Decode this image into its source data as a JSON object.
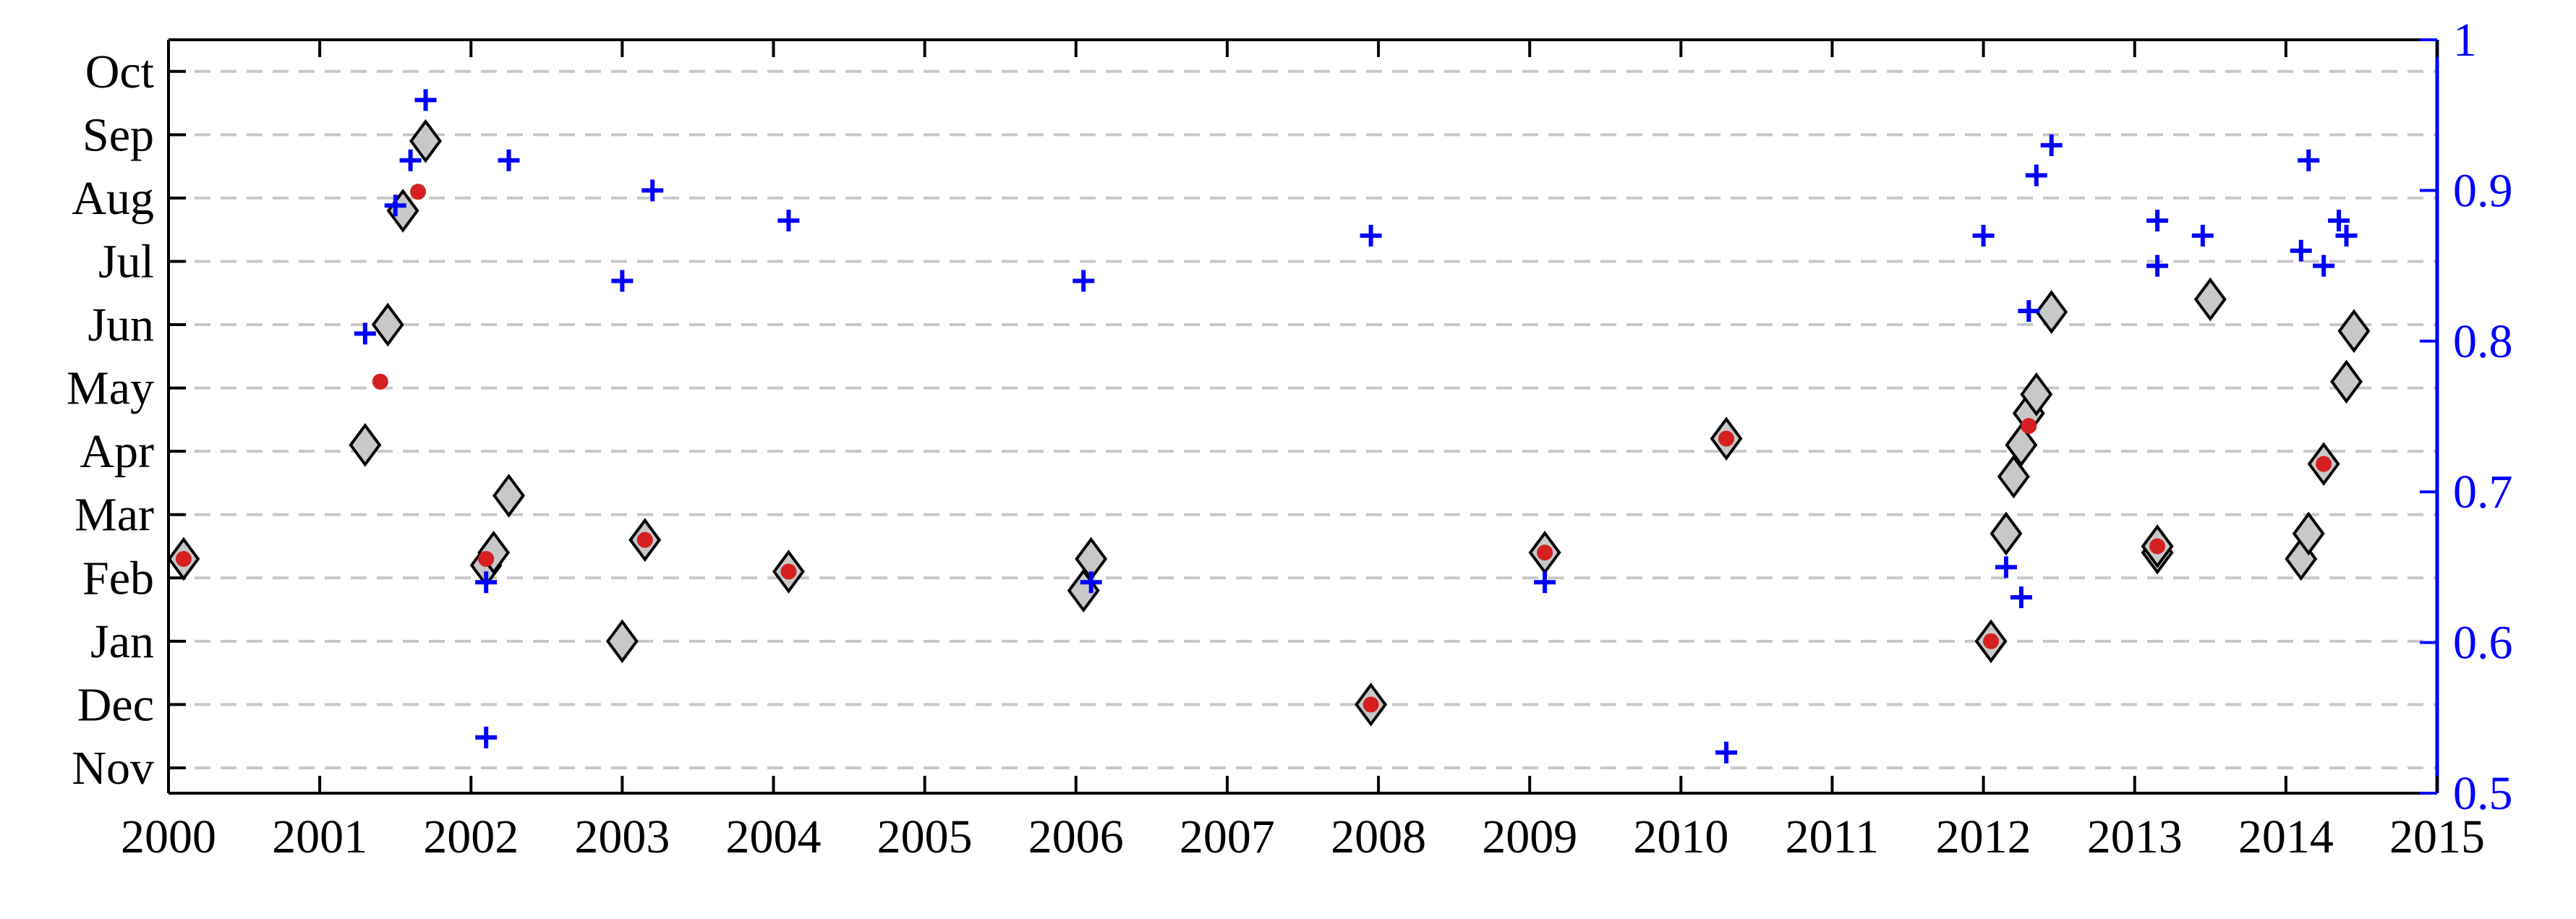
{
  "chart_data": {
    "type": "scatter",
    "x_ticks": [
      "2000",
      "2001",
      "2002",
      "2003",
      "2004",
      "2005",
      "2006",
      "2007",
      "2008",
      "2009",
      "2010",
      "2011",
      "2012",
      "2013",
      "2014",
      "2015"
    ],
    "xlim": [
      2000,
      2015
    ],
    "y_left_ticks": [
      "Nov",
      "Dec",
      "Jan",
      "Feb",
      "Mar",
      "Apr",
      "May",
      "Jun",
      "Jul",
      "Aug",
      "Sep",
      "Oct"
    ],
    "ylim_left": [
      -0.4,
      11.5
    ],
    "y_right_ticks": [
      "0.5",
      "0.6",
      "0.7",
      "0.8",
      "0.9",
      "1"
    ],
    "ylim_right": [
      0.5,
      1.0
    ],
    "grid": "horizontal dashed",
    "colors": {
      "diamond_fill": "#c8c8c8",
      "diamond_edge": "#000000",
      "dot": "#d42020",
      "plus": "#0000ff",
      "right_axis": "#0000ff"
    },
    "series": [
      {
        "marker": "diamond",
        "axis": "left",
        "points": [
          [
            2000.1,
            3.3
          ],
          [
            2001.3,
            5.1
          ],
          [
            2001.45,
            7.0
          ],
          [
            2001.55,
            8.8
          ],
          [
            2001.7,
            9.9
          ],
          [
            2002.1,
            3.2
          ],
          [
            2002.15,
            3.4
          ],
          [
            2002.25,
            4.3
          ],
          [
            2003.0,
            2.0
          ],
          [
            2003.15,
            3.6
          ],
          [
            2004.1,
            3.1
          ],
          [
            2006.05,
            2.8
          ],
          [
            2006.1,
            3.3
          ],
          [
            2007.95,
            1.0
          ],
          [
            2009.1,
            3.4
          ],
          [
            2010.3,
            5.2
          ],
          [
            2012.05,
            2.0
          ],
          [
            2012.15,
            3.7
          ],
          [
            2012.2,
            4.6
          ],
          [
            2012.25,
            5.1
          ],
          [
            2012.3,
            5.6
          ],
          [
            2012.35,
            5.9
          ],
          [
            2012.45,
            7.2
          ],
          [
            2013.15,
            3.4
          ],
          [
            2013.15,
            3.5
          ],
          [
            2013.5,
            7.4
          ],
          [
            2014.1,
            3.3
          ],
          [
            2014.15,
            3.7
          ],
          [
            2014.25,
            4.8
          ],
          [
            2014.4,
            6.1
          ],
          [
            2014.45,
            6.9
          ]
        ]
      },
      {
        "marker": "dot",
        "axis": "left",
        "points": [
          [
            2000.1,
            3.3
          ],
          [
            2001.4,
            6.1
          ],
          [
            2001.65,
            9.1
          ],
          [
            2002.1,
            3.3
          ],
          [
            2003.15,
            3.6
          ],
          [
            2004.1,
            3.1
          ],
          [
            2007.95,
            1.0
          ],
          [
            2009.1,
            3.4
          ],
          [
            2010.3,
            5.2
          ],
          [
            2012.05,
            2.0
          ],
          [
            2012.3,
            5.4
          ],
          [
            2013.15,
            3.5
          ],
          [
            2014.25,
            4.8
          ]
        ]
      },
      {
        "marker": "plus",
        "axis": "right",
        "points": [
          [
            2001.3,
            0.805
          ],
          [
            2001.5,
            0.89
          ],
          [
            2001.6,
            0.92
          ],
          [
            2001.7,
            0.96
          ],
          [
            2002.1,
            0.64
          ],
          [
            2002.1,
            0.537
          ],
          [
            2002.25,
            0.92
          ],
          [
            2003.0,
            0.84
          ],
          [
            2003.2,
            0.9
          ],
          [
            2004.1,
            0.88
          ],
          [
            2006.05,
            0.84
          ],
          [
            2006.1,
            0.64
          ],
          [
            2007.95,
            0.87
          ],
          [
            2009.1,
            0.64
          ],
          [
            2010.3,
            0.527
          ],
          [
            2012.0,
            0.87
          ],
          [
            2012.15,
            0.65
          ],
          [
            2012.25,
            0.63
          ],
          [
            2012.3,
            0.82
          ],
          [
            2012.35,
            0.91
          ],
          [
            2012.45,
            0.93
          ],
          [
            2013.15,
            0.88
          ],
          [
            2013.15,
            0.85
          ],
          [
            2013.45,
            0.87
          ],
          [
            2014.1,
            0.86
          ],
          [
            2014.15,
            0.92
          ],
          [
            2014.25,
            0.85
          ],
          [
            2014.35,
            0.88
          ],
          [
            2014.4,
            0.87
          ]
        ]
      }
    ]
  }
}
